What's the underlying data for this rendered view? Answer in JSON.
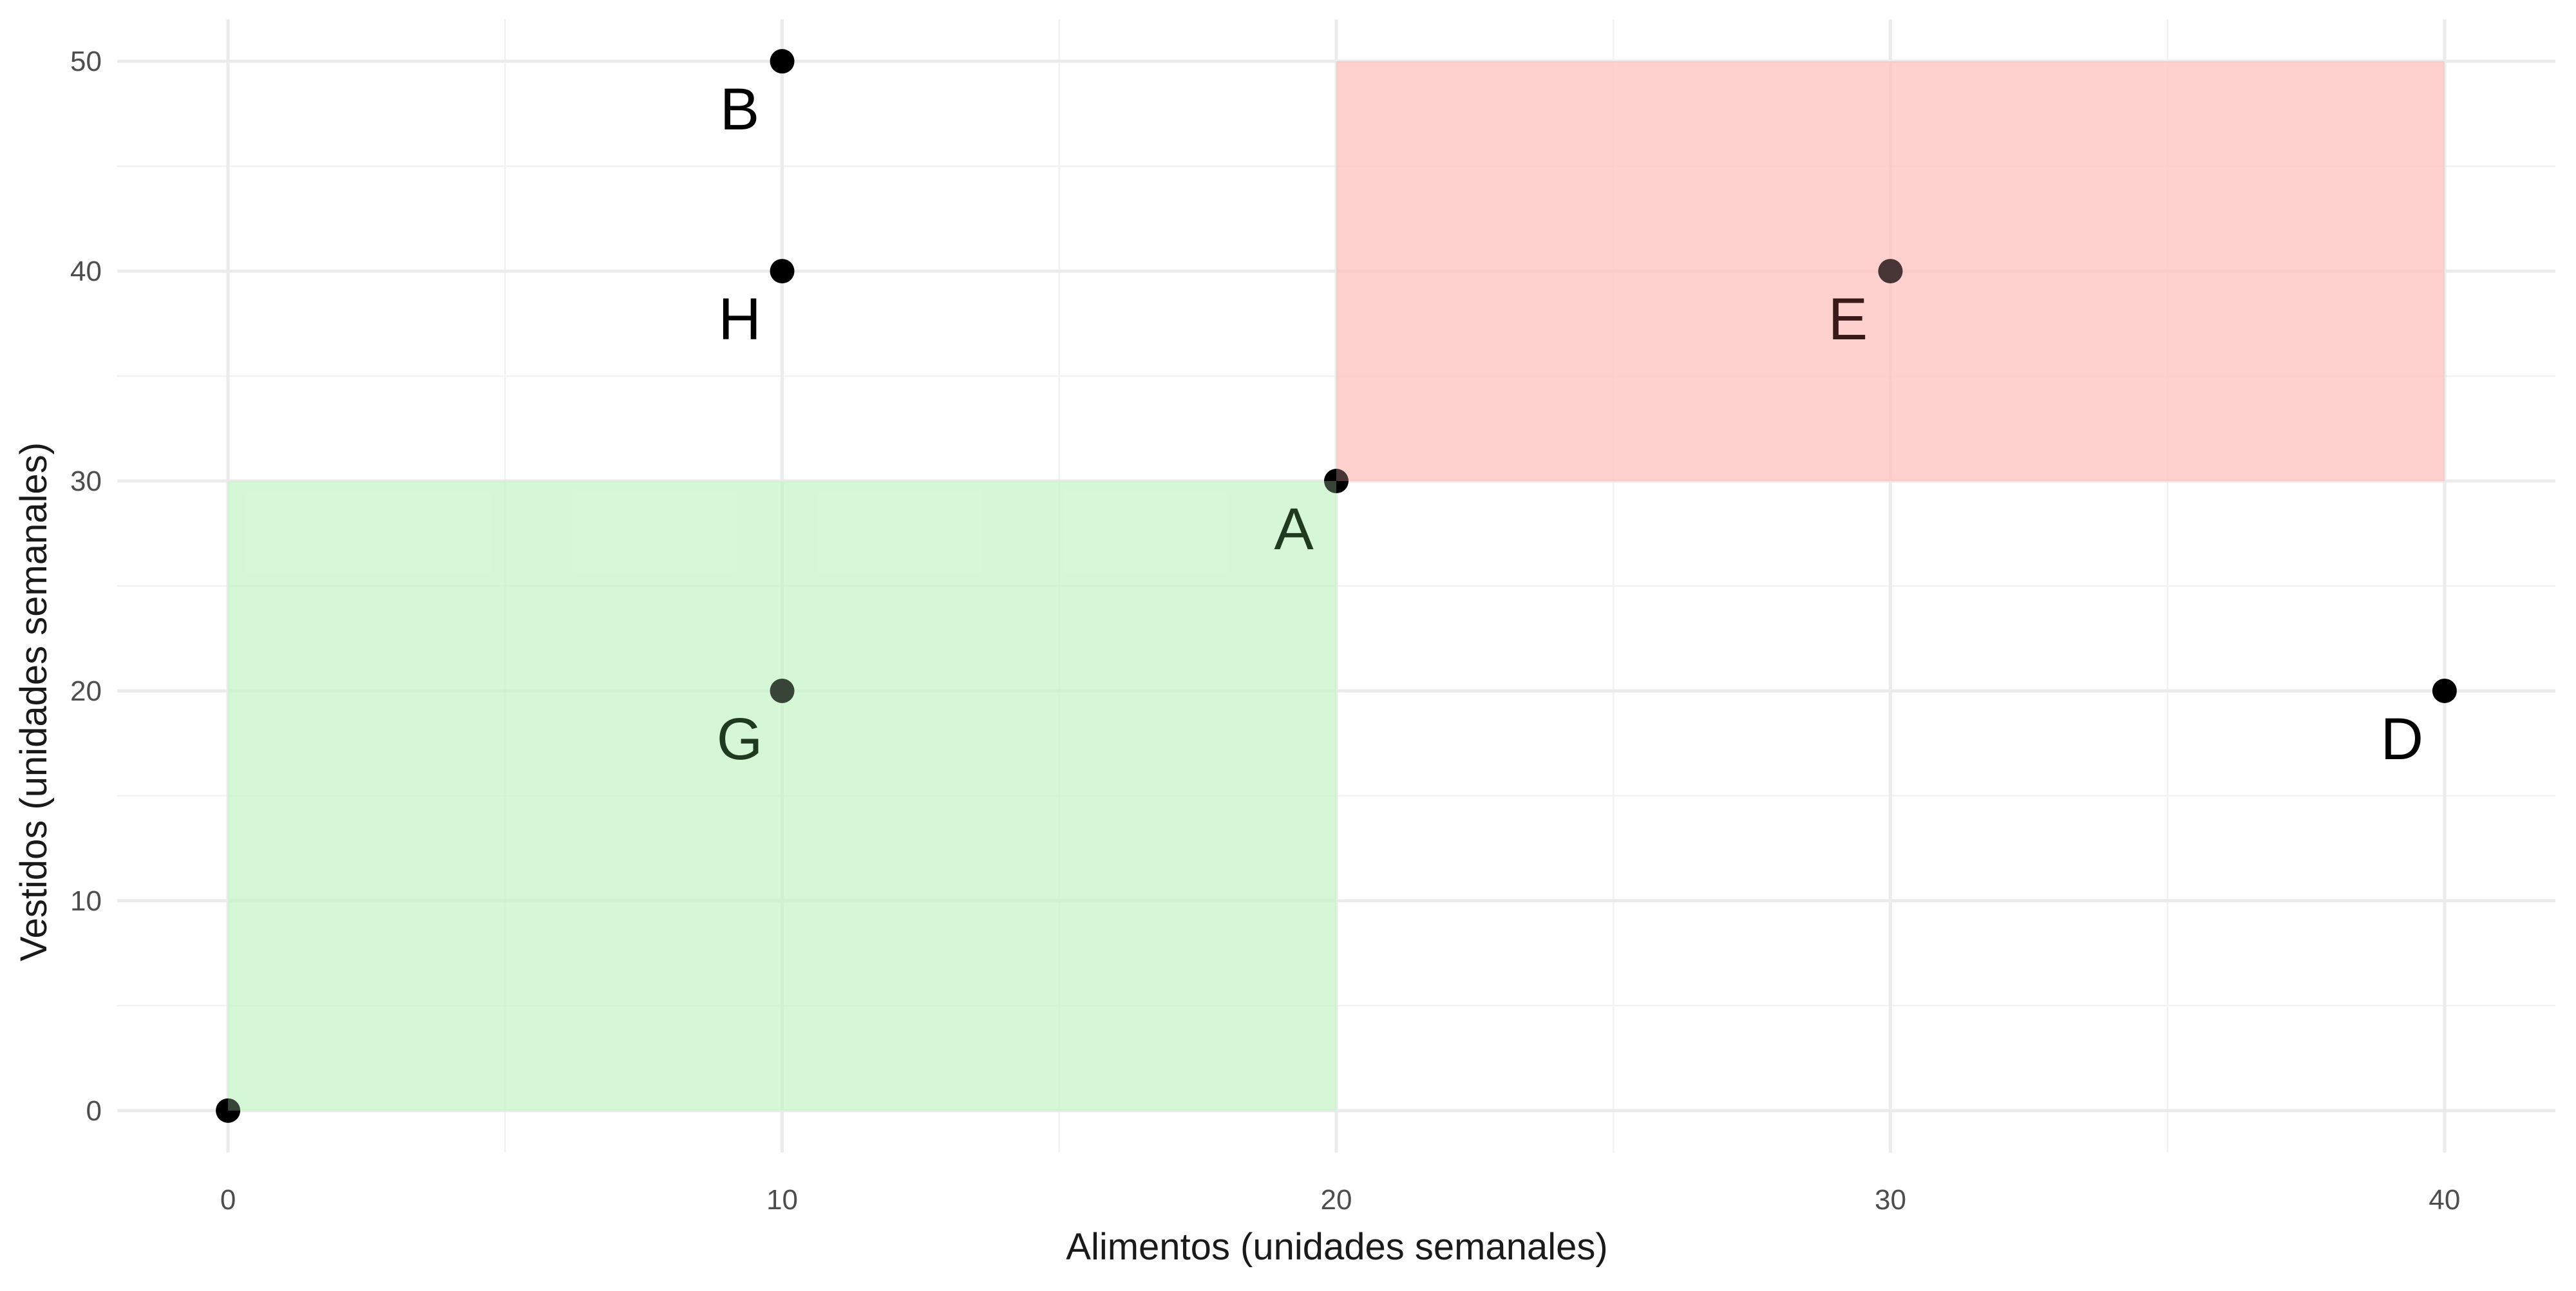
{
  "chart_data": {
    "type": "scatter",
    "xlabel": "Alimentos (unidades semanales)",
    "ylabel": "Vestidos (unidades semanales)",
    "xlim": [
      -2,
      42
    ],
    "ylim": [
      -2,
      52
    ],
    "x_ticks": [
      0,
      10,
      20,
      30,
      40
    ],
    "y_ticks": [
      0,
      10,
      20,
      30,
      40,
      50
    ],
    "grid": true,
    "regions": [
      {
        "x": [
          0,
          20
        ],
        "y": [
          0,
          30
        ],
        "color": "#c8f5c8"
      },
      {
        "x": [
          20,
          40
        ],
        "y": [
          30,
          50
        ],
        "color": "#ffc1be"
      }
    ],
    "points": [
      {
        "label": "",
        "x": 0,
        "y": 0
      },
      {
        "label": "A",
        "x": 20,
        "y": 30
      },
      {
        "label": "B",
        "x": 10,
        "y": 50
      },
      {
        "label": "D",
        "x": 40,
        "y": 20
      },
      {
        "label": "E",
        "x": 30,
        "y": 40
      },
      {
        "label": "G",
        "x": 10,
        "y": 20
      },
      {
        "label": "H",
        "x": 10,
        "y": 40
      }
    ]
  }
}
